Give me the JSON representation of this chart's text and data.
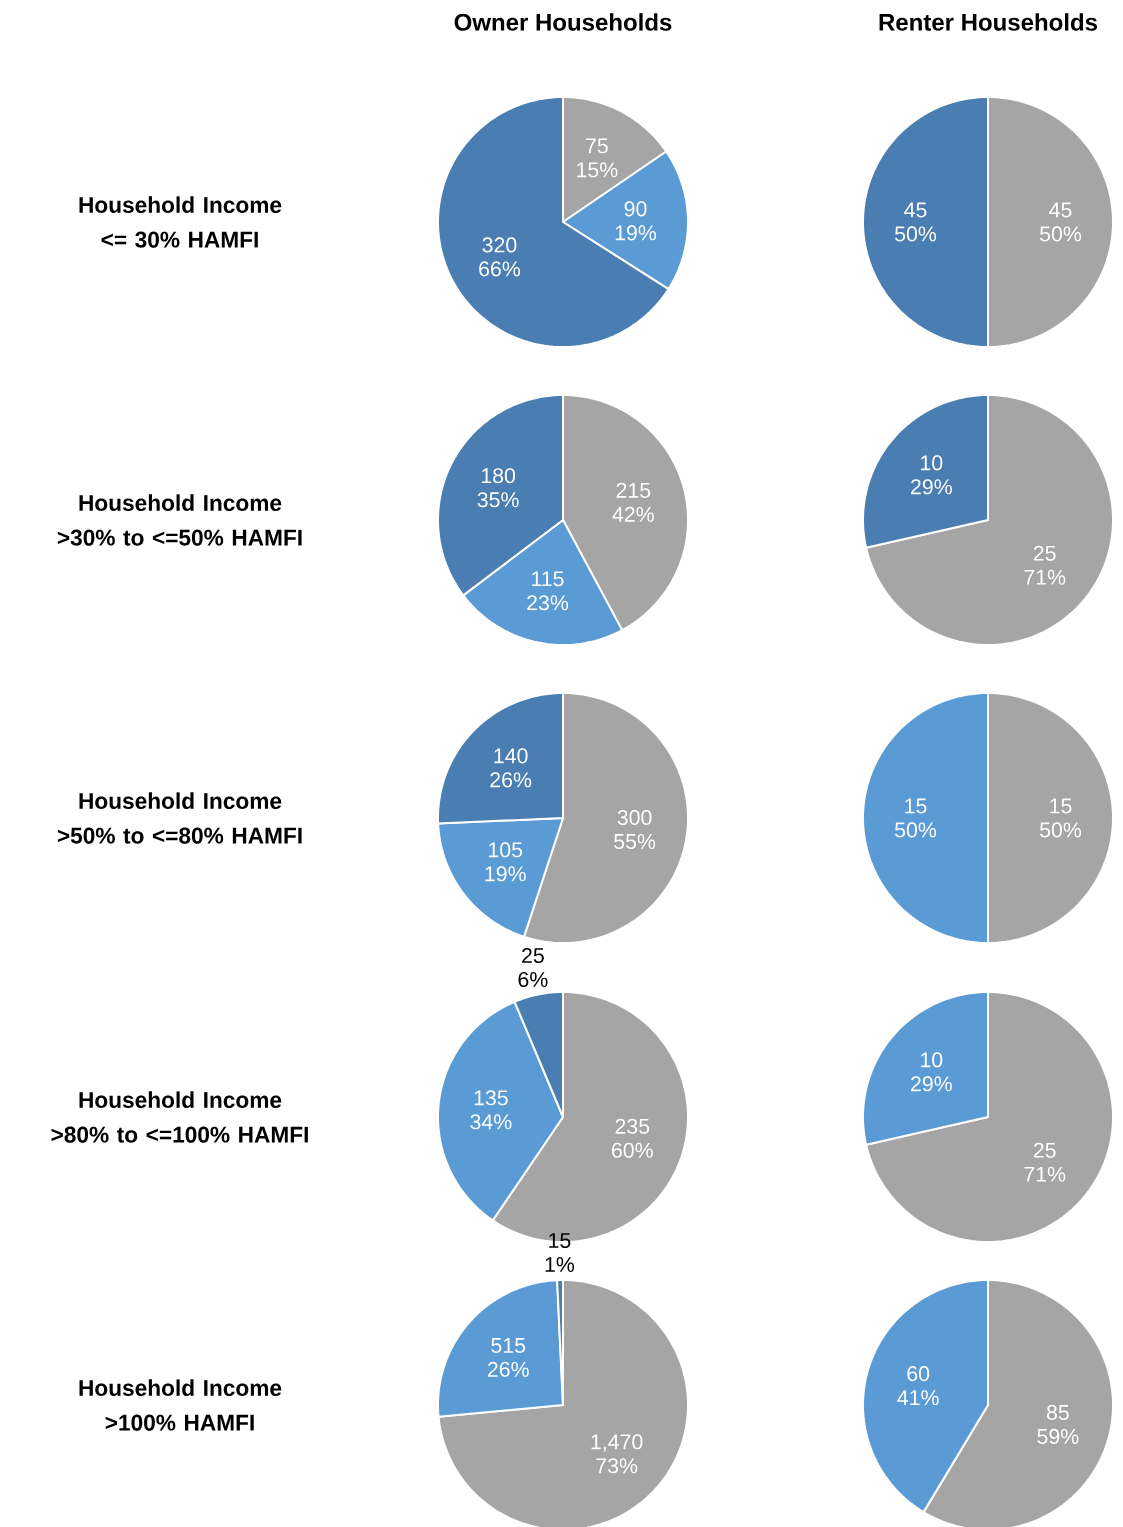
{
  "chart_data": [
    {
      "type": "pie",
      "title": "Owner Households",
      "ylabel": "Household Income <= 30% HAMFI",
      "categories": [
        null,
        null,
        null
      ],
      "values": [
        75,
        90,
        320
      ],
      "colors": [
        "#a5a5a5",
        "#5b9bd5",
        "#4a7eb2"
      ],
      "value_labels": [
        "75 15%",
        "90 19%",
        "320 66%"
      ]
    },
    {
      "type": "pie",
      "title": "Renter Households",
      "categories": [
        null,
        null
      ],
      "values": [
        45,
        45
      ],
      "colors": [
        "#a5a5a5",
        "#4a7eb2"
      ],
      "value_labels": [
        "45 50%",
        "45 50%"
      ]
    },
    {
      "type": "pie",
      "ylabel": "Household Income >30% to <=50% HAMFI",
      "categories": [
        null,
        null,
        null
      ],
      "values": [
        215,
        115,
        180
      ],
      "colors": [
        "#a5a5a5",
        "#5b9bd5",
        "#4a7eb2"
      ],
      "value_labels": [
        "215 42%",
        "115 23%",
        "180 35%"
      ]
    },
    {
      "type": "pie",
      "categories": [
        null,
        null
      ],
      "values": [
        25,
        10
      ],
      "colors": [
        "#a5a5a5",
        "#4a7eb2"
      ],
      "value_labels": [
        "25 71%",
        "10 29%"
      ]
    },
    {
      "type": "pie",
      "ylabel": "Household Income >50% to <=80% HAMFI",
      "categories": [
        null,
        null,
        null
      ],
      "values": [
        300,
        105,
        140
      ],
      "colors": [
        "#a5a5a5",
        "#5b9bd5",
        "#4a7eb2"
      ],
      "value_labels": [
        "300 55%",
        "105 19%",
        "140 26%"
      ]
    },
    {
      "type": "pie",
      "categories": [
        null,
        null
      ],
      "values": [
        15,
        15
      ],
      "colors": [
        "#a5a5a5",
        "#5b9bd5"
      ],
      "value_labels": [
        "15 50%",
        "15 50%"
      ]
    },
    {
      "type": "pie",
      "ylabel": "Household Income >80% to <=100% HAMFI",
      "categories": [
        null,
        null,
        null
      ],
      "values": [
        235,
        135,
        25
      ],
      "colors": [
        "#a5a5a5",
        "#5b9bd5",
        "#4a7eb2"
      ],
      "value_labels": [
        "235 60%",
        "135 34%",
        "25 6%"
      ]
    },
    {
      "type": "pie",
      "categories": [
        null,
        null
      ],
      "values": [
        25,
        10
      ],
      "colors": [
        "#a5a5a5",
        "#5b9bd5"
      ],
      "value_labels": [
        "25 71%",
        "10 29%"
      ]
    },
    {
      "type": "pie",
      "ylabel": "Household Income >100% HAMFI",
      "categories": [
        null,
        null,
        null
      ],
      "values": [
        1470,
        515,
        15
      ],
      "colors": [
        "#a5a5a5",
        "#5b9bd5",
        "#4a7eb2"
      ],
      "value_labels": [
        "1,470 73%",
        "515 26%",
        "15 1%"
      ]
    },
    {
      "type": "pie",
      "categories": [
        null,
        null
      ],
      "values": [
        85,
        60
      ],
      "colors": [
        "#a5a5a5",
        "#5b9bd5"
      ],
      "value_labels": [
        "85 59%",
        "60 41%"
      ]
    }
  ]
}
